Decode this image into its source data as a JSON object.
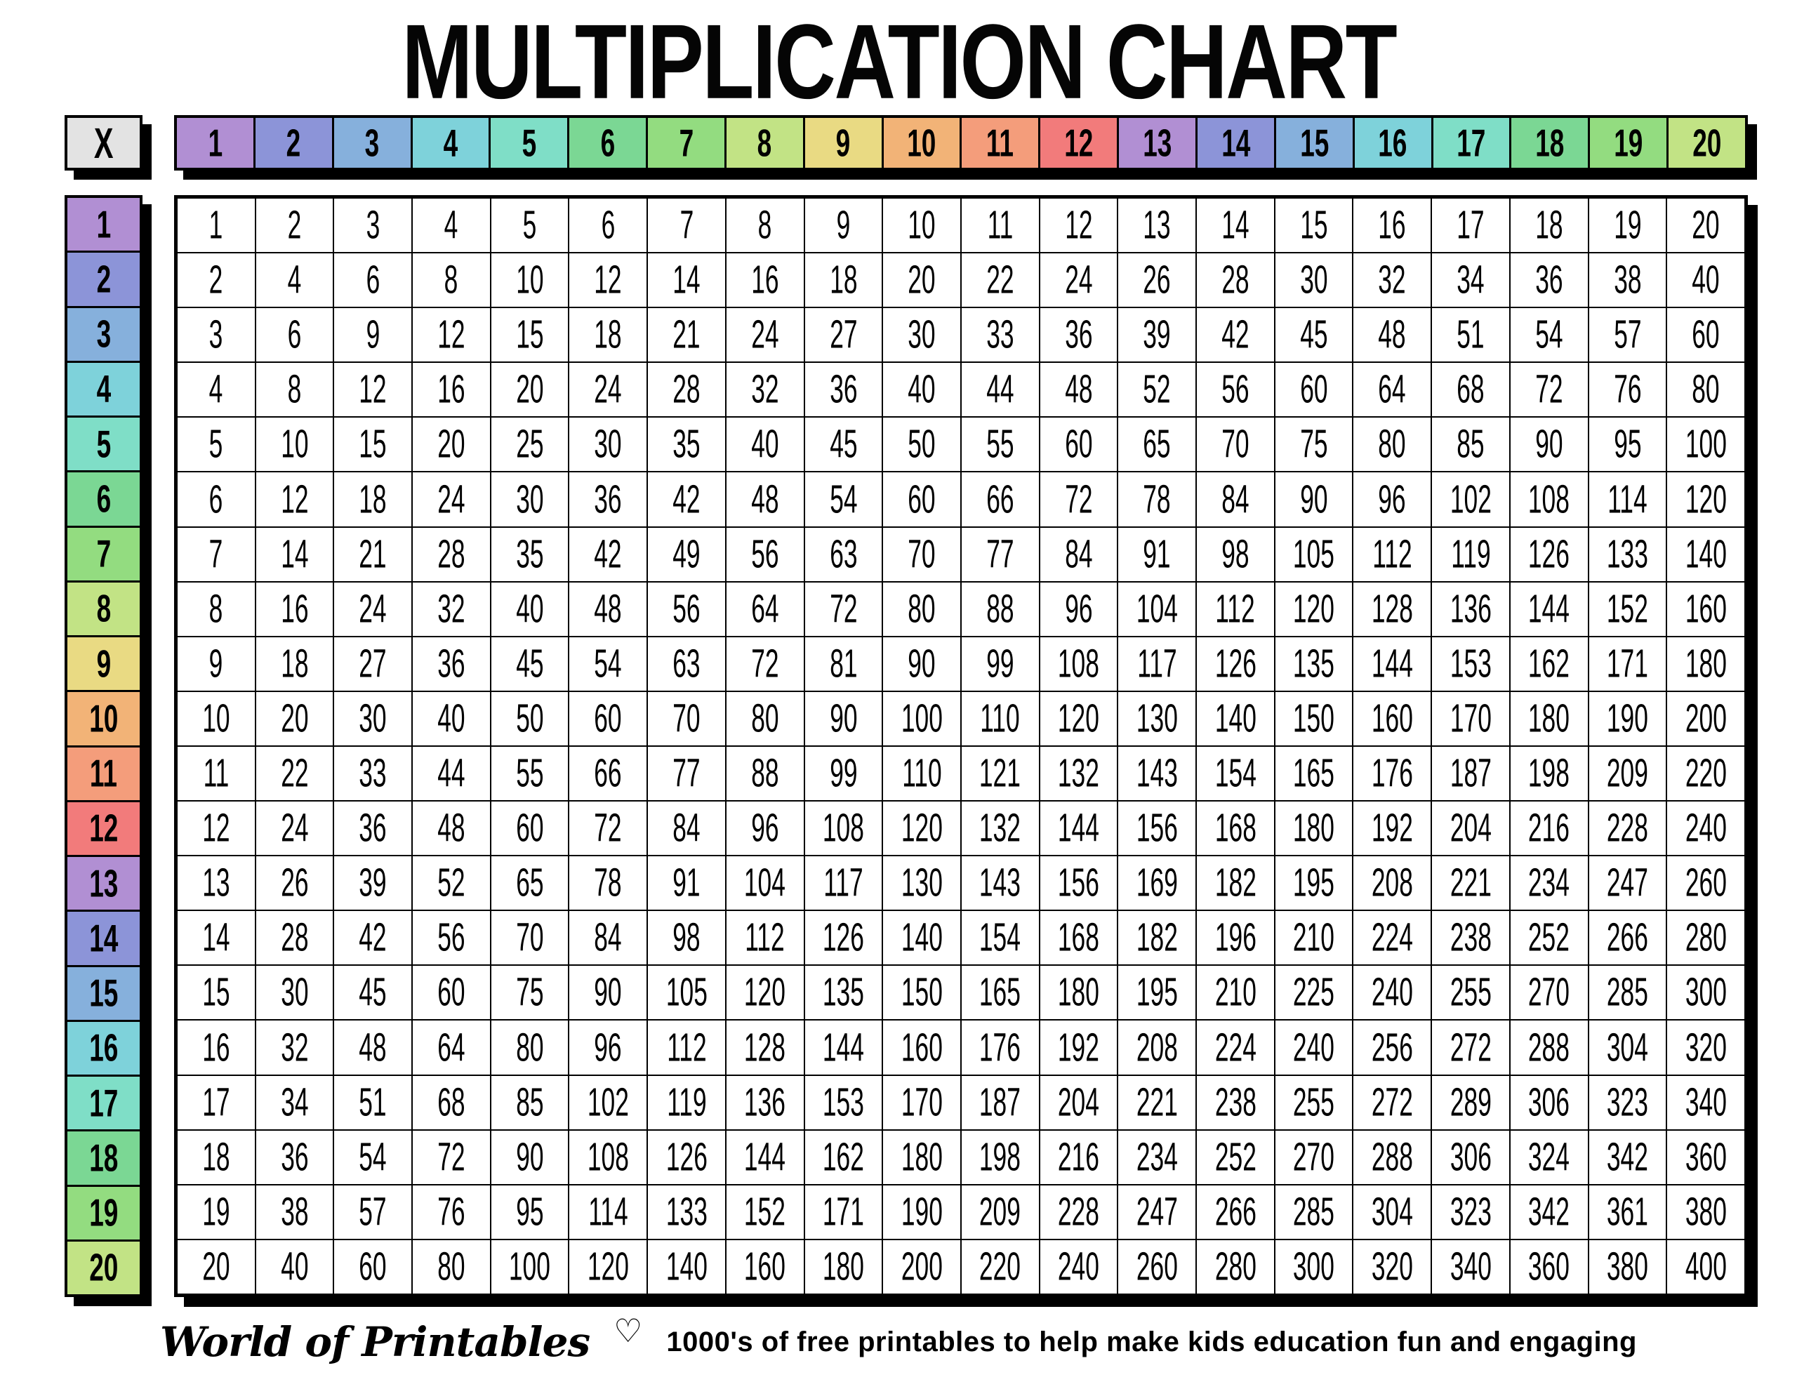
{
  "title": "MULTIPLICATION CHART",
  "table": {
    "corner_label": "X",
    "column_headers": [
      "1",
      "2",
      "3",
      "4",
      "5",
      "6",
      "7",
      "8",
      "9",
      "10",
      "11",
      "12",
      "13",
      "14",
      "15",
      "16",
      "17",
      "18",
      "19",
      "20"
    ],
    "row_headers": [
      "1",
      "2",
      "3",
      "4",
      "5",
      "6",
      "7",
      "8",
      "9",
      "10",
      "11",
      "12",
      "13",
      "14",
      "15",
      "16",
      "17",
      "18",
      "19",
      "20"
    ],
    "values": [
      [
        1,
        2,
        3,
        4,
        5,
        6,
        7,
        8,
        9,
        10,
        11,
        12,
        13,
        14,
        15,
        16,
        17,
        18,
        19,
        20
      ],
      [
        2,
        4,
        6,
        8,
        10,
        12,
        14,
        16,
        18,
        20,
        22,
        24,
        26,
        28,
        30,
        32,
        34,
        36,
        38,
        40
      ],
      [
        3,
        6,
        9,
        12,
        15,
        18,
        21,
        24,
        27,
        30,
        33,
        36,
        39,
        42,
        45,
        48,
        51,
        54,
        57,
        60
      ],
      [
        4,
        8,
        12,
        16,
        20,
        24,
        28,
        32,
        36,
        40,
        44,
        48,
        52,
        56,
        60,
        64,
        68,
        72,
        76,
        80
      ],
      [
        5,
        10,
        15,
        20,
        25,
        30,
        35,
        40,
        45,
        50,
        55,
        60,
        65,
        70,
        75,
        80,
        85,
        90,
        95,
        100
      ],
      [
        6,
        12,
        18,
        24,
        30,
        36,
        42,
        48,
        54,
        60,
        66,
        72,
        78,
        84,
        90,
        96,
        102,
        108,
        114,
        120
      ],
      [
        7,
        14,
        21,
        28,
        35,
        42,
        49,
        56,
        63,
        70,
        77,
        84,
        91,
        98,
        105,
        112,
        119,
        126,
        133,
        140
      ],
      [
        8,
        16,
        24,
        32,
        40,
        48,
        56,
        64,
        72,
        80,
        88,
        96,
        104,
        112,
        120,
        128,
        136,
        144,
        152,
        160
      ],
      [
        9,
        18,
        27,
        36,
        45,
        54,
        63,
        72,
        81,
        90,
        99,
        108,
        117,
        126,
        135,
        144,
        153,
        162,
        171,
        180
      ],
      [
        10,
        20,
        30,
        40,
        50,
        60,
        70,
        80,
        90,
        100,
        110,
        120,
        130,
        140,
        150,
        160,
        170,
        180,
        190,
        200
      ],
      [
        11,
        22,
        33,
        44,
        55,
        66,
        77,
        88,
        99,
        110,
        121,
        132,
        143,
        154,
        165,
        176,
        187,
        198,
        209,
        220
      ],
      [
        12,
        24,
        36,
        48,
        60,
        72,
        84,
        96,
        108,
        120,
        132,
        144,
        156,
        168,
        180,
        192,
        204,
        216,
        228,
        240
      ],
      [
        13,
        26,
        39,
        52,
        65,
        78,
        91,
        104,
        117,
        130,
        143,
        156,
        169,
        182,
        195,
        208,
        221,
        234,
        247,
        260
      ],
      [
        14,
        28,
        42,
        56,
        70,
        84,
        98,
        112,
        126,
        140,
        154,
        168,
        182,
        196,
        210,
        224,
        238,
        252,
        266,
        280
      ],
      [
        15,
        30,
        45,
        60,
        75,
        90,
        105,
        120,
        135,
        150,
        165,
        180,
        195,
        210,
        225,
        240,
        255,
        270,
        285,
        300
      ],
      [
        16,
        32,
        48,
        64,
        80,
        96,
        112,
        128,
        144,
        160,
        176,
        192,
        208,
        224,
        240,
        256,
        272,
        288,
        304,
        320
      ],
      [
        17,
        34,
        51,
        68,
        85,
        102,
        119,
        136,
        153,
        170,
        187,
        204,
        221,
        238,
        255,
        272,
        289,
        306,
        323,
        340
      ],
      [
        18,
        36,
        54,
        72,
        90,
        108,
        126,
        144,
        162,
        180,
        198,
        216,
        234,
        252,
        270,
        288,
        306,
        324,
        342,
        360
      ],
      [
        19,
        38,
        57,
        76,
        95,
        114,
        133,
        152,
        171,
        190,
        209,
        228,
        247,
        266,
        285,
        304,
        323,
        342,
        361,
        380
      ],
      [
        20,
        40,
        60,
        80,
        100,
        120,
        140,
        160,
        180,
        200,
        220,
        240,
        260,
        280,
        300,
        320,
        340,
        360,
        380,
        400
      ]
    ]
  },
  "colors": {
    "header_cycle": [
      "#b18fd3",
      "#8c94d8",
      "#86b0dc",
      "#7ed2da",
      "#7fdec7",
      "#7bd794",
      "#93dc80",
      "#c2e385",
      "#e9da83",
      "#f2b377",
      "#f49d7b",
      "#f27b7b"
    ],
    "header_cells": [
      "#b18fd3",
      "#8c94d8",
      "#86b0dc",
      "#7ed2da",
      "#7fdec7",
      "#7bd794",
      "#93dc80",
      "#c2e385",
      "#e9da83",
      "#f2b377",
      "#f49d7b",
      "#f27b7b",
      "#b18fd3",
      "#8c94d8",
      "#86b0dc",
      "#7ed2da",
      "#7fdec7",
      "#7bd794",
      "#93dc80",
      "#c2e385"
    ],
    "corner_bg": "#e3e3e3",
    "grid_line": "#000000",
    "cell_bg": "#ffffff",
    "shadow": "#000000",
    "title_color": "#050505"
  },
  "footer": {
    "brand": "World of Printables",
    "heart_icon": "♡",
    "tagline": "1000's of free printables to help make kids education fun and engaging"
  }
}
